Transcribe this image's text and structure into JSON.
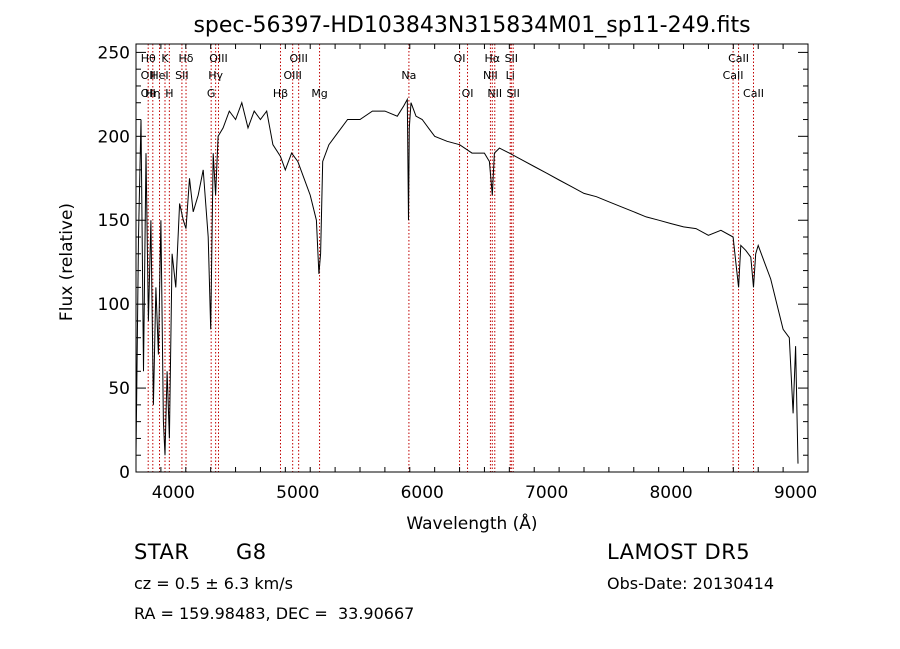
{
  "chart_data": {
    "type": "line",
    "title": "spec-56397-HD103843N315834M01_sp11-249.fits",
    "xlabel": "Wavelength (Å)",
    "ylabel": "Flux (relative)",
    "xlim": [
      3700,
      9100
    ],
    "ylim": [
      0,
      255
    ],
    "xticks": [
      "4000",
      "5000",
      "6000",
      "7000",
      "8000",
      "9000"
    ],
    "yticks": [
      "0",
      "50",
      "100",
      "150",
      "200",
      "250"
    ],
    "grid": false,
    "series": [
      {
        "x": [
          3700,
          3720,
          3740,
          3760,
          3780,
          3800,
          3820,
          3840,
          3860,
          3880,
          3900,
          3920,
          3933,
          3950,
          3968,
          3990,
          4020,
          4050,
          4080,
          4102,
          4130,
          4160,
          4200,
          4240,
          4280,
          4300,
          4320,
          4340,
          4360,
          4400,
          4450,
          4500,
          4550,
          4600,
          4650,
          4700,
          4750,
          4800,
          4861,
          4900,
          4950,
          5000,
          5050,
          5100,
          5150,
          5170,
          5183,
          5200,
          5250,
          5300,
          5400,
          5500,
          5600,
          5700,
          5800,
          5850,
          5880,
          5890,
          5896,
          5910,
          5950,
          6000,
          6050,
          6100,
          6200,
          6300,
          6400,
          6500,
          6540,
          6563,
          6580,
          6620,
          6700,
          6800,
          6900,
          7000,
          7100,
          7200,
          7300,
          7400,
          7500,
          7600,
          7700,
          7800,
          7900,
          8000,
          8100,
          8200,
          8300,
          8400,
          8498,
          8520,
          8542,
          8560,
          8600,
          8640,
          8662,
          8680,
          8700,
          8750,
          8800,
          8850,
          8900,
          8950,
          8980,
          9000,
          9020
        ],
        "y": [
          10,
          140,
          210,
          60,
          190,
          90,
          150,
          40,
          110,
          70,
          150,
          30,
          10,
          60,
          20,
          130,
          110,
          160,
          150,
          145,
          175,
          155,
          165,
          180,
          140,
          85,
          190,
          165,
          200,
          205,
          215,
          210,
          220,
          205,
          215,
          210,
          215,
          195,
          188,
          180,
          190,
          185,
          175,
          165,
          150,
          118,
          130,
          185,
          195,
          200,
          210,
          210,
          215,
          215,
          212,
          218,
          222,
          150,
          205,
          220,
          212,
          210,
          205,
          200,
          197,
          195,
          190,
          190,
          185,
          165,
          190,
          193,
          190,
          186,
          182,
          178,
          174,
          170,
          166,
          164,
          161,
          158,
          155,
          152,
          150,
          148,
          146,
          145,
          141,
          144,
          140,
          125,
          110,
          135,
          132,
          128,
          110,
          130,
          135,
          125,
          115,
          100,
          85,
          80,
          35,
          75,
          5
        ]
      }
    ],
    "line_labels": [
      {
        "wavelength": 3798,
        "rows": [
          {
            "row": 1,
            "text": "Hθ"
          },
          {
            "row": 2,
            "text": "OII"
          },
          {
            "row": 3,
            "text": "OII"
          }
        ]
      },
      {
        "wavelength": 3835,
        "rows": [
          {
            "row": 3,
            "text": "Hη"
          }
        ]
      },
      {
        "wavelength": 3889,
        "rows": [
          {
            "row": 2,
            "text": "HeI"
          }
        ]
      },
      {
        "wavelength": 3933,
        "rows": [
          {
            "row": 1,
            "text": "K"
          }
        ]
      },
      {
        "wavelength": 3968,
        "rows": [
          {
            "row": 3,
            "text": "H"
          }
        ]
      },
      {
        "wavelength": 4069,
        "rows": [
          {
            "row": 2,
            "text": "SII"
          }
        ]
      },
      {
        "wavelength": 4102,
        "rows": [
          {
            "row": 1,
            "text": "Hδ"
          }
        ]
      },
      {
        "wavelength": 4304,
        "rows": [
          {
            "row": 3,
            "text": "G"
          }
        ]
      },
      {
        "wavelength": 4340,
        "rows": [
          {
            "row": 2,
            "text": "Hγ"
          }
        ]
      },
      {
        "wavelength": 4363,
        "rows": [
          {
            "row": 1,
            "text": "OIII"
          }
        ]
      },
      {
        "wavelength": 4861,
        "rows": [
          {
            "row": 3,
            "text": "Hβ"
          }
        ]
      },
      {
        "wavelength": 4959,
        "rows": [
          {
            "row": 2,
            "text": "OIII"
          }
        ]
      },
      {
        "wavelength": 5007,
        "rows": [
          {
            "row": 1,
            "text": "OIII"
          }
        ]
      },
      {
        "wavelength": 5175,
        "rows": [
          {
            "row": 3,
            "text": "Mg"
          }
        ]
      },
      {
        "wavelength": 5893,
        "rows": [
          {
            "row": 2,
            "text": "Na"
          }
        ]
      },
      {
        "wavelength": 6300,
        "rows": [
          {
            "row": 1,
            "text": "OI"
          }
        ]
      },
      {
        "wavelength": 6364,
        "rows": [
          {
            "row": 3,
            "text": "OI"
          }
        ]
      },
      {
        "wavelength": 6548,
        "rows": [
          {
            "row": 2,
            "text": "NII"
          }
        ]
      },
      {
        "wavelength": 6563,
        "rows": [
          {
            "row": 1,
            "text": "Hα"
          }
        ]
      },
      {
        "wavelength": 6583,
        "rows": [
          {
            "row": 3,
            "text": "NII"
          }
        ]
      },
      {
        "wavelength": 6707,
        "rows": [
          {
            "row": 2,
            "text": "Li"
          }
        ]
      },
      {
        "wavelength": 6716,
        "rows": [
          {
            "row": 1,
            "text": "SII"
          }
        ]
      },
      {
        "wavelength": 6731,
        "rows": [
          {
            "row": 3,
            "text": "SII"
          }
        ]
      },
      {
        "wavelength": 8498,
        "rows": [
          {
            "row": 2,
            "text": "CaII"
          }
        ]
      },
      {
        "wavelength": 8542,
        "rows": [
          {
            "row": 1,
            "text": "CaII"
          }
        ]
      },
      {
        "wavelength": 8662,
        "rows": [
          {
            "row": 3,
            "text": "CaII"
          }
        ]
      }
    ]
  },
  "info": {
    "object_class": "STAR",
    "subclass": "G8",
    "survey": "LAMOST DR5",
    "velocity": "cz = 0.5 ± 6.3 km/s",
    "obs_date": "Obs-Date: 20130414",
    "coords": "RA = 159.98483, DEC =  33.90667"
  },
  "colors": {
    "spectrum": "#000000",
    "line_markers": "#c00000",
    "background": "#ffffff"
  }
}
